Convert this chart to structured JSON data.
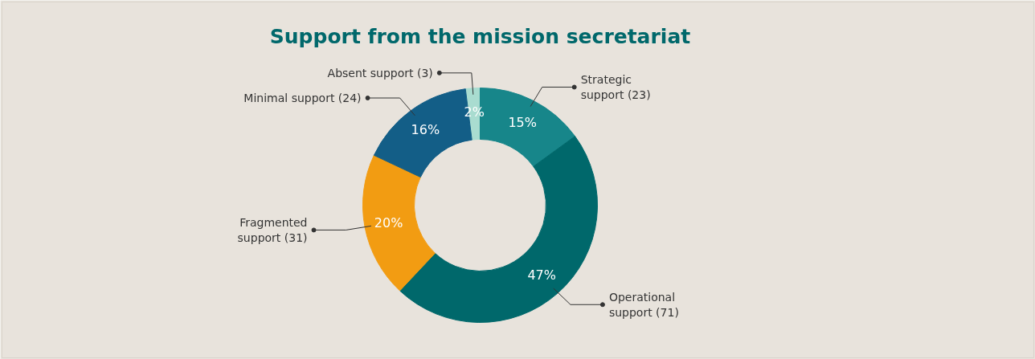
{
  "chart_data": {
    "type": "donut",
    "title": "Support from the mission secretariat",
    "categories": [
      "Absent support (3)",
      "Strategic support (23)",
      "Operational support (71)",
      "Fragmented support (31)",
      "Minimal support (24)"
    ],
    "values": [
      2,
      15,
      47,
      20,
      16
    ],
    "value_labels": [
      "2%",
      "15%",
      "47%",
      "20%",
      "16%"
    ],
    "colors": [
      "#a9dcd0",
      "#17868a",
      "#00686b",
      "#f29c12",
      "#135e87"
    ]
  }
}
